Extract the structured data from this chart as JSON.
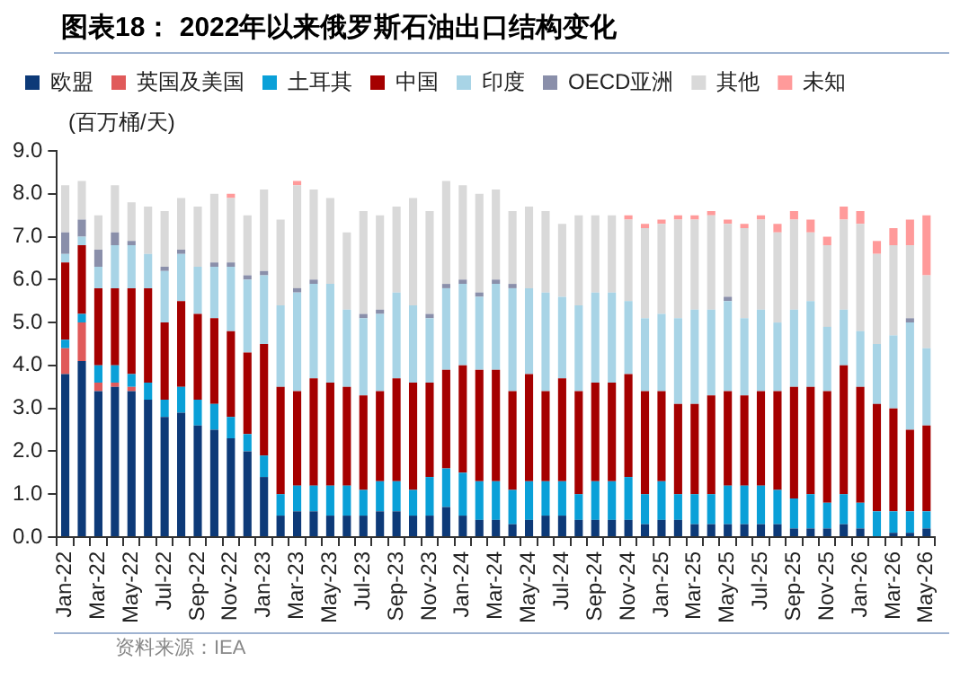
{
  "chart_data": {
    "type": "bar",
    "title": "图表18： 2022年以来俄罗斯石油出口结构变化",
    "ylabel": "(百万桶/天)",
    "stacked": true,
    "grid": false,
    "legend": "top",
    "annotations": [
      "资料来源：IEA"
    ],
    "categories": [
      "Jan-22",
      null,
      "Mar-22",
      null,
      "May-22",
      null,
      "Jul-22",
      null,
      "Sep-22",
      null,
      "Nov-22",
      null,
      "Jan-23",
      null,
      "Mar-23",
      null,
      "May-23",
      null,
      "Jul-23",
      null,
      "Sep-23",
      null,
      "Nov-23",
      null,
      "Jan-24",
      null,
      "Mar-24",
      null,
      "May-24",
      null,
      "Jul-24",
      null,
      "Sep-24",
      null,
      "Nov-24",
      null,
      "Jan-25",
      null,
      "Mar-25",
      null,
      "May-25",
      null,
      "Jul-25",
      null,
      "Sep-25",
      null,
      "Nov-25",
      null,
      "Jan-26",
      null,
      "Mar-26",
      null,
      "May-26"
    ],
    "ylim": [
      0,
      9
    ],
    "yticks": [
      {
        "value": 0,
        "label": "0.0"
      },
      {
        "value": 1,
        "label": "1.0"
      },
      {
        "value": 2,
        "label": "2.0"
      },
      {
        "value": 3,
        "label": "3.0"
      },
      {
        "value": 4,
        "label": "4.0"
      },
      {
        "value": 5,
        "label": "5.0"
      },
      {
        "value": 6,
        "label": "6.0"
      },
      {
        "value": 7,
        "label": "7.0"
      },
      {
        "value": 8,
        "label": "8.0"
      },
      {
        "value": 9,
        "label": "9.0"
      }
    ],
    "series": [
      {
        "name": "欧盟",
        "color": "#0d3a78",
        "values": [
          3.8,
          4.1,
          3.4,
          3.5,
          3.4,
          3.2,
          2.8,
          2.9,
          2.6,
          2.5,
          2.3,
          2.0,
          1.4,
          0.5,
          0.6,
          0.6,
          0.5,
          0.5,
          0.5,
          0.6,
          0.6,
          0.5,
          0.5,
          0.7,
          0.5,
          0.4,
          0.4,
          0.3,
          0.4,
          0.5,
          0.5,
          0.4,
          0.4,
          0.4,
          0.4,
          0.3,
          0.4,
          0.4,
          0.3,
          0.3,
          0.3,
          0.3,
          0.3,
          0.3,
          0.2,
          0.2,
          0.2,
          0.3,
          0.2,
          0,
          0.1,
          0.1,
          0.2
        ]
      },
      {
        "name": "英国及美国",
        "color": "#e05a5a",
        "values": [
          0.6,
          0.9,
          0.2,
          0.1,
          0.1,
          0,
          0,
          0,
          0,
          0,
          0,
          0,
          0,
          0,
          0,
          0,
          0,
          0,
          0,
          0,
          0,
          0,
          0,
          0,
          0,
          0,
          0,
          0,
          0,
          0,
          0,
          0,
          0,
          0,
          0,
          0,
          0,
          0,
          0,
          0,
          0,
          0,
          0,
          0,
          0,
          0,
          0,
          0,
          0,
          0,
          0,
          0,
          0
        ]
      },
      {
        "name": "土耳其",
        "color": "#0aa0d8",
        "values": [
          0.2,
          0.2,
          0.4,
          0.4,
          0.3,
          0.4,
          0.4,
          0.6,
          0.6,
          0.6,
          0.5,
          0.4,
          0.5,
          0.5,
          0.6,
          0.6,
          0.7,
          0.7,
          0.6,
          0.7,
          0.7,
          0.6,
          0.9,
          0.9,
          1.0,
          0.9,
          0.9,
          0.8,
          0.9,
          0.8,
          0.8,
          0.6,
          0.9,
          0.9,
          1.0,
          0.7,
          0.9,
          0.6,
          0.7,
          0.7,
          0.9,
          0.9,
          0.9,
          0.8,
          0.7,
          0.8,
          0.6,
          0.7,
          0.6,
          0.6,
          0.5,
          0.5,
          0.4
        ]
      },
      {
        "name": "中国",
        "color": "#a50000",
        "values": [
          1.8,
          1.6,
          1.8,
          1.8,
          2.0,
          2.2,
          1.8,
          2.0,
          2.0,
          2.0,
          2.0,
          1.9,
          2.6,
          2.5,
          2.2,
          2.5,
          2.4,
          2.3,
          2.2,
          2.1,
          2.4,
          2.5,
          2.2,
          2.3,
          2.5,
          2.6,
          2.6,
          2.3,
          2.5,
          2.1,
          2.4,
          2.4,
          2.3,
          2.3,
          2.4,
          2.4,
          2.1,
          2.1,
          2.1,
          2.3,
          2.2,
          2.1,
          2.2,
          2.3,
          2.6,
          2.5,
          2.6,
          3.0,
          2.7,
          2.5,
          2.4,
          1.9,
          2.0
        ]
      },
      {
        "name": "印度",
        "color": "#a8d4e6",
        "values": [
          0.2,
          0.2,
          0.5,
          1.0,
          1.0,
          0.8,
          1.2,
          1.1,
          1.1,
          1.2,
          1.5,
          1.7,
          1.6,
          1.9,
          2.3,
          2.2,
          2.3,
          1.8,
          1.8,
          1.8,
          2.0,
          1.8,
          1.5,
          1.9,
          1.9,
          1.7,
          2.0,
          2.4,
          2.0,
          2.3,
          1.9,
          2.0,
          2.1,
          2.1,
          1.7,
          1.7,
          1.8,
          2.0,
          2.2,
          2.0,
          2.1,
          1.8,
          1.9,
          1.6,
          1.8,
          2.0,
          1.5,
          1.3,
          1.3,
          1.4,
          1.7,
          2.5,
          1.8
        ]
      },
      {
        "name": "OECD亚洲",
        "color": "#8a8faa",
        "values": [
          0.5,
          0.4,
          0.4,
          0.3,
          0.1,
          0,
          0.1,
          0.1,
          0,
          0.1,
          0.1,
          0.1,
          0.1,
          0,
          0.1,
          0.1,
          0,
          0,
          0.1,
          0.1,
          0,
          0,
          0.1,
          0.1,
          0.1,
          0.1,
          0.1,
          0.1,
          0,
          0,
          0,
          0,
          0,
          0,
          0,
          0,
          0,
          0,
          0,
          0,
          0.1,
          0,
          0,
          0,
          0,
          0,
          0,
          0,
          0,
          0,
          0,
          0.1,
          0
        ]
      },
      {
        "name": "其他",
        "color": "#d9d9d9",
        "values": [
          1.1,
          0.9,
          0.8,
          1.1,
          0.9,
          1.1,
          1.3,
          1.2,
          1.4,
          1.6,
          1.5,
          1.4,
          1.9,
          2.0,
          2.4,
          2.1,
          2.0,
          1.8,
          2.4,
          2.2,
          2.0,
          2.5,
          2.4,
          2.4,
          2.2,
          2.3,
          2.1,
          1.7,
          1.9,
          1.9,
          1.7,
          2.1,
          1.8,
          1.8,
          1.9,
          2.1,
          2.1,
          2.3,
          2.1,
          2.2,
          1.7,
          2.1,
          2.1,
          2.1,
          2.1,
          1.6,
          1.9,
          2.1,
          2.5,
          2.1,
          2.1,
          1.7,
          1.7
        ]
      },
      {
        "name": "未知",
        "color": "#ff9a9a",
        "values": [
          0,
          0,
          0,
          0,
          0,
          0,
          0,
          0,
          0,
          0,
          0.1,
          0,
          0,
          0,
          0.1,
          0,
          0,
          0,
          0,
          0,
          0,
          0,
          0,
          0,
          0,
          0,
          0,
          0,
          0,
          0,
          0,
          0,
          0,
          0,
          0.1,
          0.1,
          0.1,
          0.1,
          0.1,
          0.1,
          0.1,
          0.1,
          0.1,
          0.2,
          0.2,
          0.3,
          0.2,
          0.3,
          0.3,
          0.3,
          0.4,
          0.6,
          1.4
        ]
      }
    ]
  }
}
